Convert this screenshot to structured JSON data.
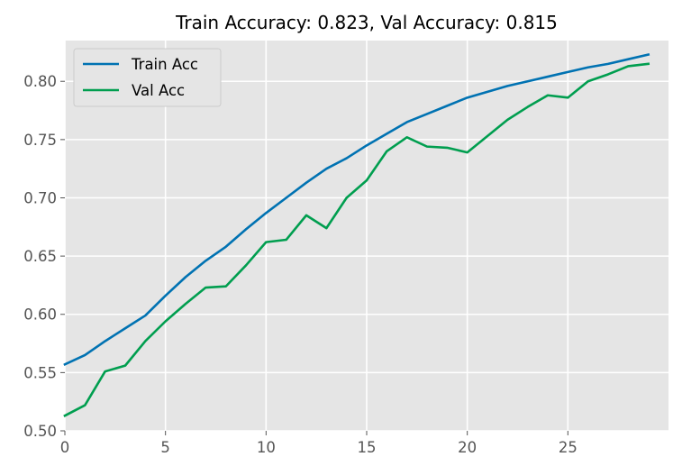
{
  "chart_data": {
    "type": "line",
    "title": "Train Accuracy: 0.823, Val Accuracy: 0.815",
    "xlabel": "",
    "ylabel": "",
    "xlim": [
      0,
      30
    ],
    "ylim": [
      0.5,
      0.835
    ],
    "xticks": [
      "0",
      "5",
      "10",
      "15",
      "20",
      "25"
    ],
    "yticks": [
      "0.50",
      "0.55",
      "0.60",
      "0.65",
      "0.70",
      "0.75",
      "0.80"
    ],
    "grid": true,
    "background": "#e5e5e5",
    "legend_position": "top-left",
    "x": [
      0,
      1,
      2,
      3,
      4,
      5,
      6,
      7,
      8,
      9,
      10,
      11,
      12,
      13,
      14,
      15,
      16,
      17,
      18,
      19,
      20,
      21,
      22,
      23,
      24,
      25,
      26,
      27,
      28,
      29
    ],
    "series": [
      {
        "name": "Train Acc",
        "color": "#0072b2",
        "values": [
          0.557,
          0.565,
          0.577,
          0.588,
          0.599,
          0.616,
          0.632,
          0.646,
          0.658,
          0.673,
          0.687,
          0.7,
          0.713,
          0.725,
          0.734,
          0.745,
          0.755,
          0.765,
          0.772,
          0.779,
          0.786,
          0.791,
          0.796,
          0.8,
          0.804,
          0.808,
          0.812,
          0.815,
          0.819,
          0.823
        ]
      },
      {
        "name": "Val Acc",
        "color": "#009e4f",
        "values": [
          0.513,
          0.522,
          0.551,
          0.556,
          0.577,
          0.594,
          0.609,
          0.623,
          0.624,
          0.642,
          0.662,
          0.664,
          0.685,
          0.674,
          0.7,
          0.715,
          0.74,
          0.752,
          0.744,
          0.743,
          0.739,
          0.753,
          0.767,
          0.778,
          0.788,
          0.786,
          0.8,
          0.806,
          0.813,
          0.815
        ]
      }
    ]
  }
}
